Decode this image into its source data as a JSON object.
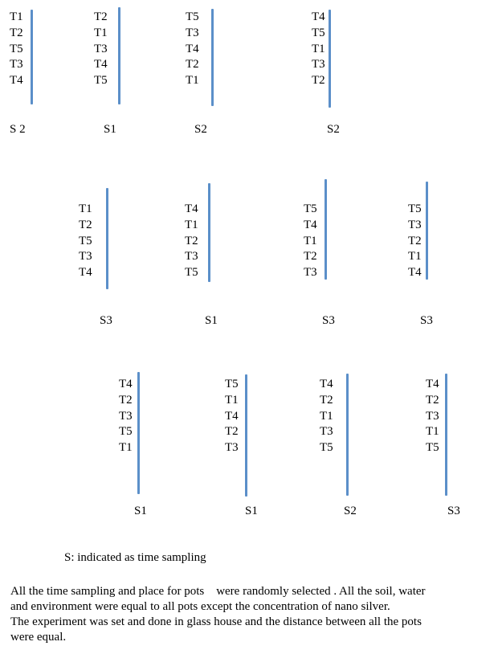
{
  "groups": [
    {
      "treatments": [
        "T1",
        "T2",
        "T5",
        "T3",
        "T4"
      ],
      "sample": "S 2"
    },
    {
      "treatments": [
        "T2",
        "T1",
        "T3",
        "T4",
        "T5"
      ],
      "sample": "S1"
    },
    {
      "treatments": [
        "T5",
        "T3",
        "T4",
        "T2",
        "T1"
      ],
      "sample": "S2"
    },
    {
      "treatments": [
        "T4",
        "T5",
        "T1",
        "T3",
        "T2"
      ],
      "sample": "S2"
    },
    {
      "treatments": [
        "T1",
        "T2",
        "T5",
        "T3",
        "T4"
      ],
      "sample": "S3"
    },
    {
      "treatments": [
        "T4",
        "T1",
        "T2",
        "T3",
        "T5"
      ],
      "sample": "S1"
    },
    {
      "treatments": [
        "T5",
        "T4",
        "T1",
        "T2",
        "T3"
      ],
      "sample": "S3"
    },
    {
      "treatments": [
        "T5",
        "T3",
        "T2",
        "T1",
        "T4"
      ],
      "sample": "S3"
    },
    {
      "treatments": [
        "T4",
        "T2",
        "T3",
        "T5",
        "T1"
      ],
      "sample": "S1"
    },
    {
      "treatments": [
        "T5",
        "T1",
        "T4",
        "T2",
        "T3"
      ],
      "sample": "S1"
    },
    {
      "treatments": [
        "T4",
        "T2",
        "T1",
        "T3",
        "T5"
      ],
      "sample": "S2"
    },
    {
      "treatments": [
        "T4",
        "T2",
        "T3",
        "T1",
        "T5"
      ],
      "sample": "S3"
    }
  ],
  "legend": "S: indicated as time sampling",
  "notes": [
    "All the time sampling and place for pots    were randomly selected . All the soil, water",
    "and environment were equal to all pots except the concentration of nano silver.",
    "The experiment was set and done in glass house and the distance between all the pots",
    "were equal."
  ],
  "colors": {
    "line": "#5b8fc9",
    "text": "#000000",
    "background": "#ffffff"
  }
}
